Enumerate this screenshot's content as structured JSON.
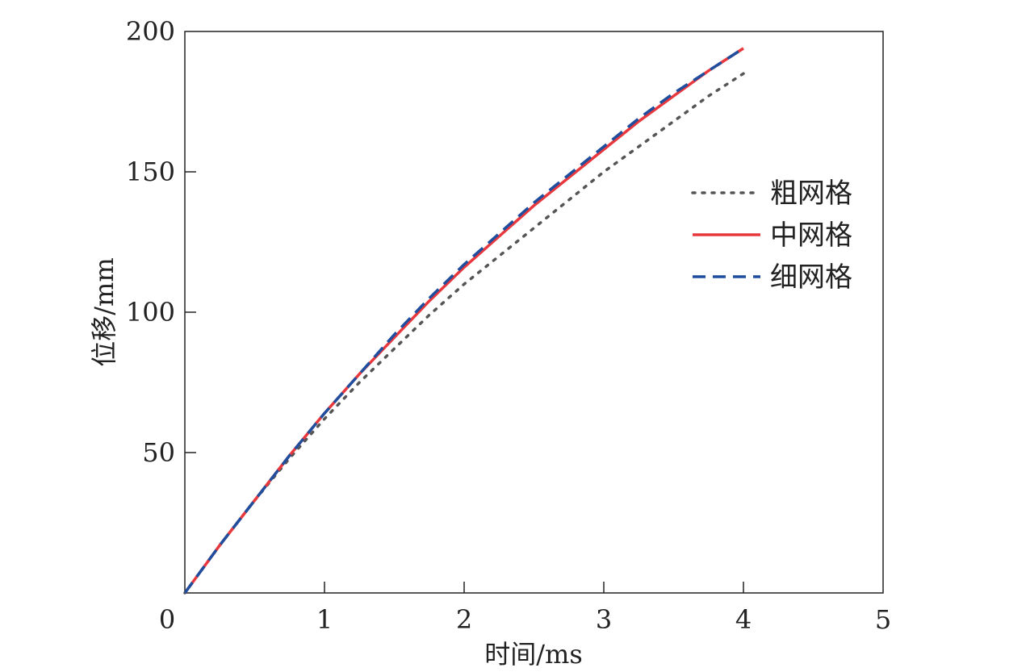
{
  "chart_data": {
    "type": "line",
    "title": "",
    "xlabel": "时间/ms",
    "ylabel": "位移/mm",
    "xlim": [
      0,
      5
    ],
    "ylim": [
      0,
      200
    ],
    "xticks": [
      "0",
      "1",
      "2",
      "3",
      "4",
      "5"
    ],
    "yticks": [
      "50",
      "100",
      "150",
      "200"
    ],
    "grid": false,
    "legend_position": "right",
    "series": [
      {
        "name": "粗网格",
        "color": "#555555",
        "style": "dotted",
        "x": [
          0,
          0.25,
          0.5,
          0.75,
          1.0,
          1.25,
          1.5,
          1.75,
          2.0,
          2.25,
          2.5,
          2.75,
          3.0,
          3.25,
          3.5,
          3.75,
          4.0
        ],
        "y": [
          0,
          17,
          33,
          48,
          62,
          75,
          87,
          99,
          110,
          120,
          130,
          140,
          150,
          159,
          168,
          177,
          185
        ]
      },
      {
        "name": "中网格",
        "color": "#e8383d",
        "style": "solid",
        "x": [
          0,
          0.25,
          0.5,
          0.75,
          1.0,
          1.25,
          1.5,
          1.75,
          2.0,
          2.25,
          2.5,
          2.75,
          3.0,
          3.25,
          3.5,
          3.75,
          4.0
        ],
        "y": [
          0,
          17,
          33,
          49,
          64,
          78,
          91,
          104,
          116,
          127,
          138,
          148,
          158,
          168,
          177,
          186,
          194
        ]
      },
      {
        "name": "细网格",
        "color": "#1f4e9e",
        "style": "dashed",
        "x": [
          0,
          0.25,
          0.5,
          0.75,
          1.0,
          1.25,
          1.5,
          1.75,
          2.0,
          2.25,
          2.5,
          2.75,
          3.0,
          3.25,
          3.5,
          3.75,
          4.0
        ],
        "y": [
          0,
          17,
          33,
          49,
          64,
          78,
          92,
          105,
          117,
          128,
          139,
          149,
          159,
          169,
          178,
          186,
          194
        ]
      }
    ]
  }
}
